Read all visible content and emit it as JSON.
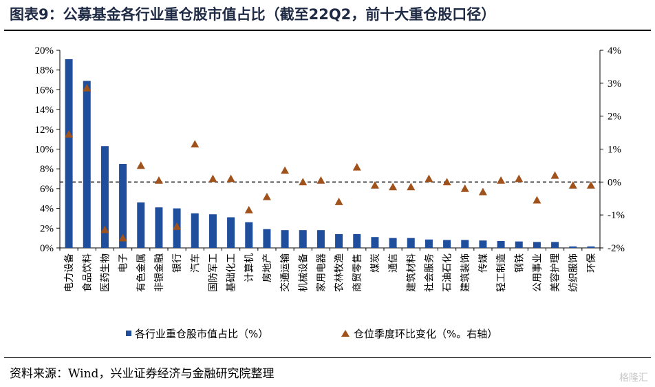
{
  "title": "图表9：公募基金各行业重仓股市值占比（截至22Q2，前十大重仓股口径）",
  "source": "资料来源：Wind，兴业证券经济与金融研究院整理",
  "watermark": "格隆汇",
  "colors": {
    "bar": "#1f4e9c",
    "marker": "#a0521c",
    "text": "#000000"
  },
  "chart_data": {
    "type": "bar",
    "categories": [
      "电力设备",
      "食品饮料",
      "医药生物",
      "电子",
      "有色金属",
      "非银金融",
      "银行",
      "汽车",
      "国防军工",
      "基础化工",
      "计算机",
      "房地产",
      "交通运输",
      "机械设备",
      "家用电器",
      "农林牧渔",
      "商贸零售",
      "煤炭",
      "通信",
      "建筑材料",
      "社会服务",
      "石油石化",
      "建筑装饰",
      "传媒",
      "轻工制造",
      "钢铁",
      "公用事业",
      "美容护理",
      "纺织服饰",
      "环保"
    ],
    "series": [
      {
        "name": "各行业重仓股市值占比（%）",
        "type": "bar",
        "axis": "left",
        "values": [
          19.1,
          16.9,
          10.3,
          8.5,
          4.6,
          4.1,
          4.0,
          3.5,
          3.4,
          3.1,
          2.6,
          1.9,
          1.8,
          1.8,
          1.8,
          1.4,
          1.4,
          1.1,
          1.0,
          1.0,
          0.85,
          0.8,
          0.8,
          0.75,
          0.7,
          0.65,
          0.6,
          0.6,
          0.15,
          0.15
        ]
      },
      {
        "name": "仓位季度环比变化（%。右轴）",
        "type": "scatter",
        "marker": "triangle",
        "axis": "right",
        "values": [
          1.45,
          2.85,
          -1.45,
          -1.7,
          0.5,
          0.05,
          -1.35,
          1.15,
          0.1,
          0.1,
          -0.85,
          -0.45,
          0.35,
          0.0,
          0.05,
          -0.6,
          0.45,
          -0.1,
          -0.15,
          -0.15,
          0.1,
          0.0,
          -0.2,
          -0.3,
          0.05,
          0.1,
          -0.55,
          0.2,
          -0.1,
          -0.1
        ]
      }
    ],
    "left_axis": {
      "min": 0,
      "max": 20,
      "step": 2,
      "format": "percent"
    },
    "right_axis": {
      "min": -2,
      "max": 4,
      "step": 1,
      "format": "percent"
    },
    "reference_line": {
      "axis": "right",
      "value": 0,
      "style": "dashed"
    },
    "legend_position": "bottom"
  }
}
